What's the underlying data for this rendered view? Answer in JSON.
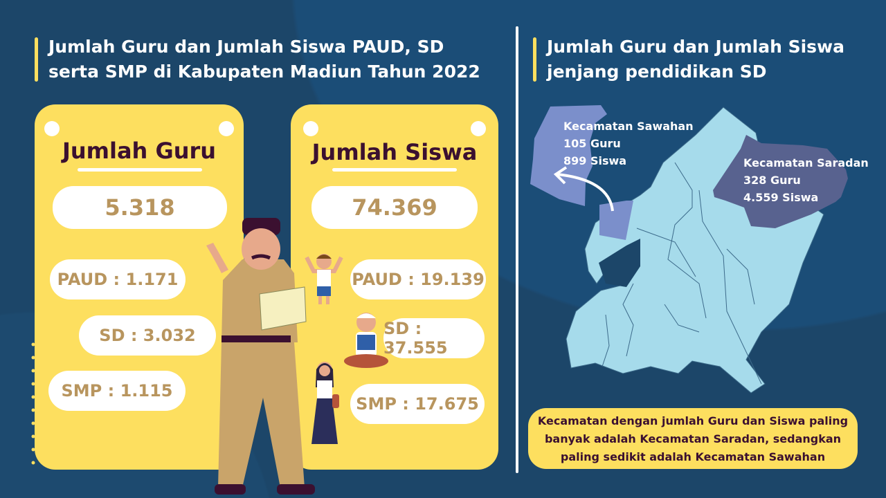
{
  "left_title": "Jumlah Guru dan Jumlah Siswa PAUD, SD serta SMP di Kabupaten Madiun Tahun 2022",
  "guru": {
    "title": "Jumlah Guru",
    "total": "5.318",
    "paud": "PAUD : 1.171",
    "sd": "SD : 3.032",
    "smp": "SMP : 1.115"
  },
  "siswa": {
    "title": "Jumlah Siswa",
    "total": "74.369",
    "paud": "PAUD : 19.139",
    "sd": "SD : 37.555",
    "smp": "SMP : 17.675"
  },
  "right_title": "Jumlah Guru dan Jumlah Siswa jenjang pendidikan SD",
  "map": {
    "sawahan": {
      "name": "Kecamatan Sawahan",
      "guru": "105 Guru",
      "siswa": "899 Siswa"
    },
    "saradan": {
      "name": "Kecamatan Saradan",
      "guru": "328 Guru",
      "siswa": "4.559 Siswa"
    }
  },
  "note": "Kecamatan dengan jumlah Guru dan Siswa paling banyak adalah Kecamatan Saradan, sedangkan paling sedikit adalah Kecamatan Sawahan",
  "colors": {
    "background": "#1c4669",
    "card": "#fddf5f",
    "number": "#b8955e",
    "heading": "#3b1030",
    "map_light": "#a6dbeb",
    "sawahan": "#7b8fcb",
    "saradan": "#58628f"
  }
}
